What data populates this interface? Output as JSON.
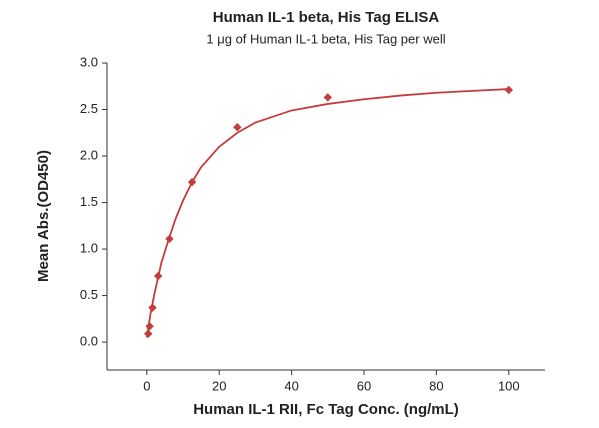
{
  "chart_data": {
    "type": "scatter",
    "title": "Human IL-1 beta, His Tag ELISA",
    "subtitle": "1 μg of Human IL-1 beta, His Tag per well",
    "x_label": "Human IL-1 RII, Fc Tag Conc. (ng/mL)",
    "y_label": "Mean Abs.(OD450)",
    "series": [
      {
        "color": "#c43c3c",
        "x": [
          0.391,
          0.781,
          1.563,
          3.125,
          6.25,
          12.5,
          25,
          50,
          100
        ],
        "values": [
          0.09,
          0.17,
          0.37,
          0.71,
          1.11,
          1.72,
          2.31,
          2.63,
          2.71
        ]
      }
    ],
    "fit": {
      "color": "#c43c3c",
      "x": [
        0,
        1,
        2,
        4,
        6,
        8,
        10,
        12.5,
        15,
        20,
        25,
        30,
        40,
        50,
        60,
        70,
        80,
        90,
        100
      ],
      "values": [
        0.05,
        0.3,
        0.5,
        0.85,
        1.1,
        1.33,
        1.52,
        1.72,
        1.88,
        2.1,
        2.25,
        2.36,
        2.49,
        2.56,
        2.61,
        2.65,
        2.68,
        2.7,
        2.72
      ]
    },
    "xlim": [
      -11,
      110
    ],
    "ylim": [
      -0.3,
      3.0
    ],
    "xticks": [
      0,
      20,
      40,
      60,
      80,
      100
    ],
    "yticks": [
      {
        "value": 0,
        "label": "0.0"
      },
      {
        "value": 0.5,
        "label": "0.5"
      },
      {
        "value": 1,
        "label": "1.0"
      },
      {
        "value": 1.5,
        "label": "1.5"
      },
      {
        "value": 2,
        "label": "2.0"
      },
      {
        "value": 2.5,
        "label": "2.5"
      },
      {
        "value": 3,
        "label": "3.0"
      }
    ]
  }
}
